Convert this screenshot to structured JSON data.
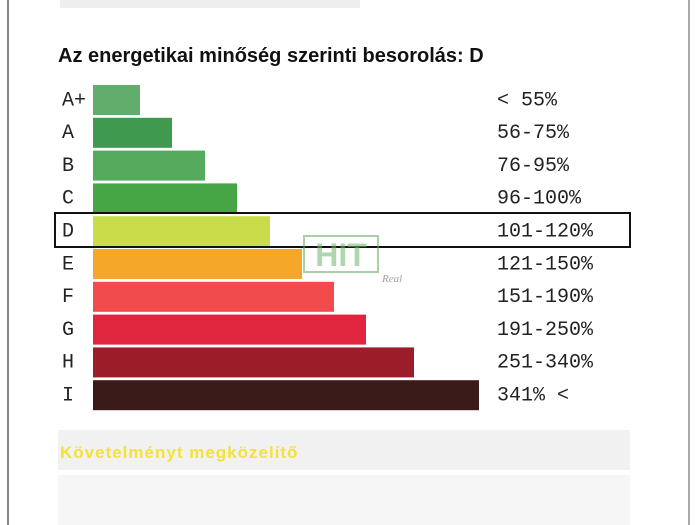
{
  "title": "Az energetikai minőség szerinti besorolás: D",
  "rows": [
    {
      "grade": "A+",
      "range": "< 55%"
    },
    {
      "grade": "A",
      "range": "56-75%"
    },
    {
      "grade": "B",
      "range": "76-95%"
    },
    {
      "grade": "C",
      "range": "96-100%"
    },
    {
      "grade": "D",
      "range": "101-120%"
    },
    {
      "grade": "E",
      "range": "121-150%"
    },
    {
      "grade": "F",
      "range": "151-190%"
    },
    {
      "grade": "G",
      "range": "191-250%"
    },
    {
      "grade": "H",
      "range": "251-340%"
    },
    {
      "grade": "I",
      "range": "341% <"
    }
  ],
  "watermark": {
    "brand": "HIT",
    "sub": "Real"
  },
  "footer": "Követelményt megközelítő"
}
